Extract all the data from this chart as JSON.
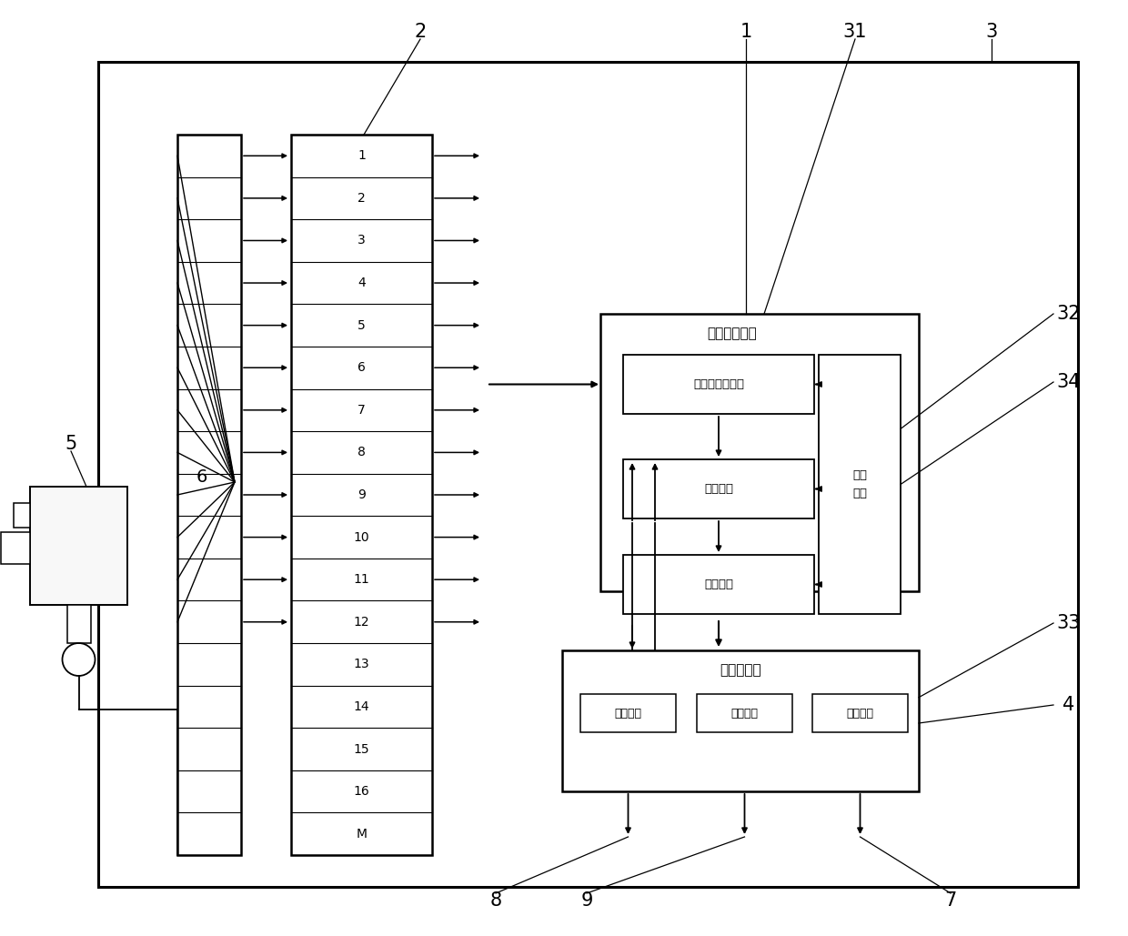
{
  "fig_width": 12.4,
  "fig_height": 10.29,
  "bg_color": "#ffffff",
  "line_color": "#000000",
  "rows_active": [
    "1",
    "2",
    "3",
    "4",
    "5",
    "6",
    "7",
    "8",
    "9",
    "10",
    "11",
    "12"
  ],
  "rows_inactive": [
    "13",
    "14",
    "15",
    "16",
    "M"
  ],
  "counter_title": "开关量计数器",
  "digital_label": "数字量接收模块",
  "process_label": "处理模块",
  "comm_label": "通讯模块",
  "power_label": "电源\n模块",
  "display_title": "画面显示器",
  "btn1_label": "开始计数",
  "btn2_label": "停止计数",
  "btn3_label": "数值清空"
}
